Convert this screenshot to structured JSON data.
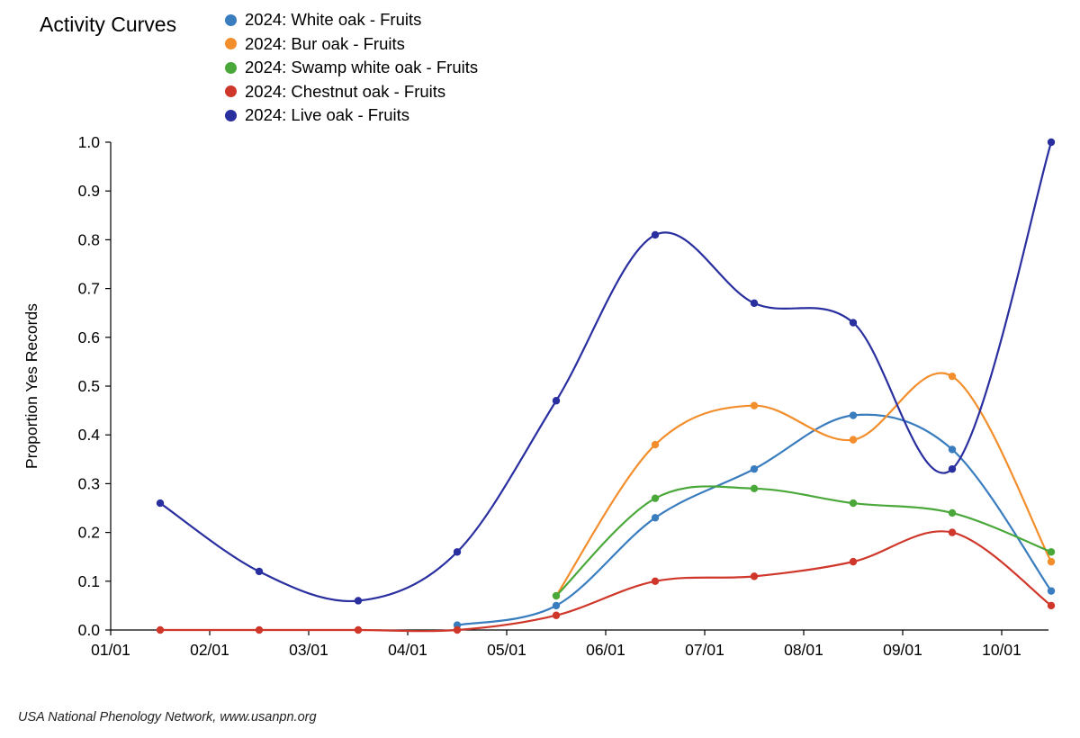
{
  "chart_data": {
    "type": "line",
    "title": "Activity Curves",
    "ylabel": "Proportion Yes Records",
    "xlabel": "",
    "x": [
      "01/15",
      "02/15",
      "03/15",
      "04/15",
      "05/15",
      "06/15",
      "07/15",
      "08/15",
      "09/15",
      "10/15"
    ],
    "x_tick_labels": [
      "01/01",
      "02/01",
      "03/01",
      "04/01",
      "05/01",
      "06/01",
      "07/01",
      "08/01",
      "09/01",
      "10/01"
    ],
    "y_tick_labels": [
      "0.0",
      "0.1",
      "0.2",
      "0.3",
      "0.4",
      "0.5",
      "0.6",
      "0.7",
      "0.8",
      "0.9",
      "1.0"
    ],
    "ylim": [
      0,
      1
    ],
    "grid": false,
    "legend_position": "top",
    "series": [
      {
        "name": "2024: White oak - Fruits",
        "color": "#3a7dbf",
        "values": [
          null,
          null,
          null,
          0.01,
          0.05,
          0.23,
          0.33,
          0.44,
          0.37,
          0.08
        ]
      },
      {
        "name": "2024: Bur oak - Fruits",
        "color": "#f28e2b",
        "values": [
          null,
          null,
          null,
          null,
          0.07,
          0.38,
          0.46,
          0.39,
          0.52,
          0.14
        ]
      },
      {
        "name": "2024: Swamp white oak - Fruits",
        "color": "#4aa83a",
        "values": [
          null,
          null,
          null,
          null,
          0.07,
          0.27,
          0.29,
          0.26,
          0.24,
          0.16
        ]
      },
      {
        "name": "2024: Chestnut oak - Fruits",
        "color": "#d0372b",
        "values": [
          0,
          0,
          0,
          0,
          0.03,
          0.1,
          0.11,
          0.14,
          0.2,
          0.05
        ]
      },
      {
        "name": "2024: Live oak - Fruits",
        "color": "#2a2fa0",
        "values": [
          0.26,
          0.12,
          0.06,
          0.16,
          0.47,
          0.81,
          0.67,
          0.63,
          0.33,
          1.0
        ]
      }
    ]
  },
  "footer": "USA National Phenology Network, www.usanpn.org"
}
